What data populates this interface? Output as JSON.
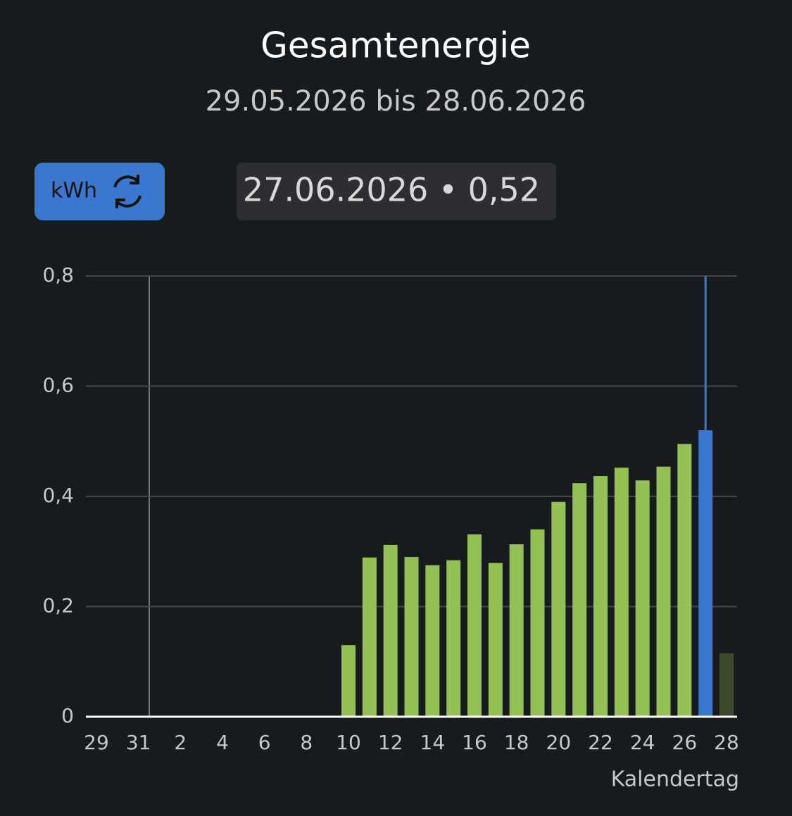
{
  "header": {
    "title": "Gesamtenergie",
    "subtitle": "29.05.2026 bis 28.06.2026"
  },
  "controls": {
    "unit_button": "kWh",
    "readout": "27.06.2026 • 0,52"
  },
  "chart_data": {
    "type": "bar",
    "categories": [
      "29",
      null,
      "31",
      null,
      "2",
      null,
      "4",
      null,
      "6",
      null,
      "8",
      null,
      "10",
      null,
      "12",
      null,
      "14",
      null,
      "16",
      null,
      "18",
      null,
      "20",
      null,
      "22",
      null,
      "24",
      null,
      "26",
      null,
      "28"
    ],
    "values": [
      0,
      0,
      0,
      0,
      0,
      0,
      0,
      0,
      0,
      0,
      0,
      0,
      0.13,
      0.289,
      0.312,
      0.29,
      0.275,
      0.284,
      0.331,
      0.279,
      0.313,
      0.34,
      0.39,
      0.424,
      0.437,
      0.452,
      0.429,
      0.454,
      0.495,
      0.52,
      0.115
    ],
    "colors": [
      "#94c153",
      "#94c153",
      "#94c153",
      "#94c153",
      "#94c153",
      "#94c153",
      "#94c153",
      "#94c153",
      "#94c153",
      "#94c153",
      "#94c153",
      "#94c153",
      "#94c153",
      "#94c153",
      "#94c153",
      "#94c153",
      "#94c153",
      "#94c153",
      "#94c153",
      "#94c153",
      "#94c153",
      "#94c153",
      "#94c153",
      "#94c153",
      "#94c153",
      "#94c153",
      "#94c153",
      "#94c153",
      "#94c153",
      "#3a78cf",
      "#3d4a2c"
    ],
    "ylim": [
      0,
      0.8
    ],
    "yticks": [
      0,
      {
        "value": 0.2,
        "label": "0,2"
      },
      {
        "value": 0.4,
        "label": "0,4"
      },
      {
        "value": 0.6,
        "label": "0,6"
      },
      {
        "value": 0.8,
        "label": "0,8"
      }
    ],
    "x_label": "Kalendertag",
    "grid": true
  }
}
